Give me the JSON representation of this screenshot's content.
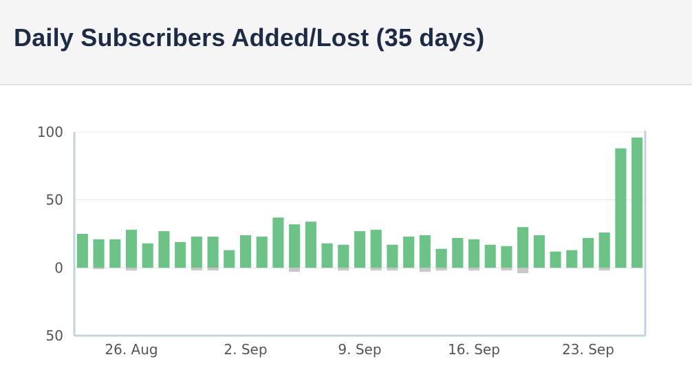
{
  "header": {
    "title": "Daily Subscribers Added/Lost (35 days)"
  },
  "colors": {
    "added": "#6cc287",
    "lost": "#c8c8c8",
    "axis": "#c5d3dc",
    "grid": "#e6e6e6",
    "text": "#555555"
  },
  "chart_data": {
    "type": "bar",
    "title": "Daily Subscribers Added/Lost (35 days)",
    "xlabel": "",
    "ylabel": "",
    "ylim": [
      -50,
      100
    ],
    "y_ticks": [
      {
        "value": 100,
        "label": "100"
      },
      {
        "value": 50,
        "label": "50"
      },
      {
        "value": 0,
        "label": "0"
      },
      {
        "value": -50,
        "label": "50"
      }
    ],
    "x_ticks": [
      {
        "index": 3.5,
        "label": "26. Aug"
      },
      {
        "index": 10.5,
        "label": "2. Sep"
      },
      {
        "index": 17.5,
        "label": "9. Sep"
      },
      {
        "index": 24.5,
        "label": "16. Sep"
      },
      {
        "index": 31.5,
        "label": "23. Sep"
      }
    ],
    "series": [
      {
        "values": [
          25,
          21,
          21,
          28,
          18,
          27,
          19,
          23,
          23,
          13,
          24,
          23,
          37,
          32,
          34,
          18,
          17,
          27,
          28,
          17,
          23,
          24,
          14,
          22,
          21,
          17,
          16,
          30,
          24,
          12,
          13,
          22,
          26,
          88,
          96
        ]
      },
      {
        "values": [
          0,
          -1,
          0,
          -2,
          0,
          0,
          0,
          -2,
          -2,
          0,
          0,
          0,
          0,
          -3,
          0,
          0,
          -2,
          0,
          -2,
          -2,
          0,
          -3,
          -2,
          0,
          -2,
          0,
          -2,
          -4,
          0,
          0,
          0,
          0,
          -2,
          0,
          0
        ]
      }
    ],
    "grid": true,
    "legend": "none"
  }
}
